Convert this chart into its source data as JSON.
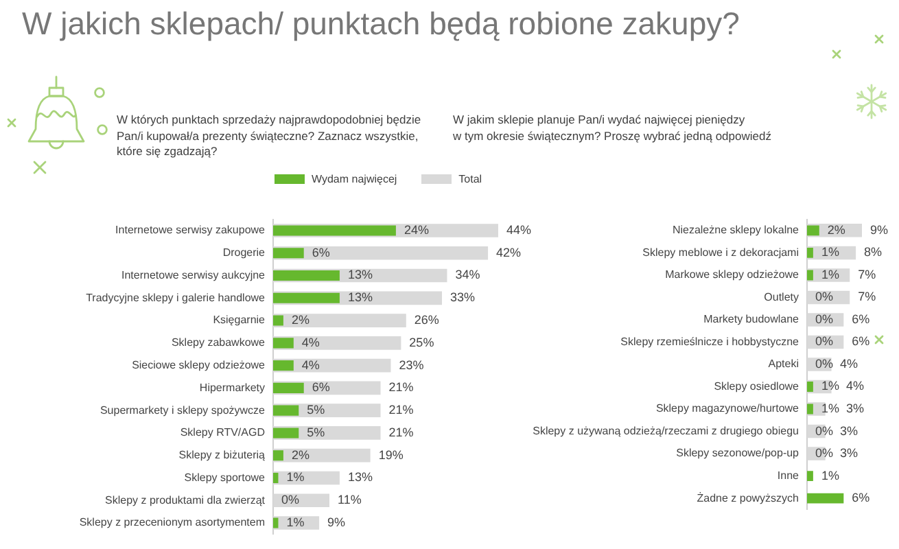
{
  "chart_data": [
    {
      "type": "bar",
      "title": "W jakich sklepach/ punktach będą robione zakupy?",
      "subtitle": "W których punktach sprzedaży najprawdopodobniej będzie\nPan/i kupował/a prezenty świąteczne? Zaznacz wszystkie,\nktóre się zgadzają?",
      "orientation": "horizontal",
      "categories": [
        "Internetowe serwisy zakupowe",
        "Drogerie",
        "Internetowe serwisy aukcyjne",
        "Tradycyjne sklepy i galerie handlowe",
        "Księgarnie",
        "Sklepy zabawkowe",
        "Sieciowe sklepy odzieżowe",
        "Hipermarkety",
        "Supermarkety i sklepy spożywcze",
        "Sklepy RTV/AGD",
        "Sklepy z biżuterią",
        "Sklepy sportowe",
        "Sklepy z produktami dla zwierząt",
        "Sklepy z przecenionym asortymentem"
      ],
      "series": [
        {
          "name": "Wydam najwięcej",
          "color": "#66b82e",
          "values": [
            24,
            6,
            13,
            13,
            2,
            4,
            4,
            6,
            5,
            5,
            2,
            1,
            0,
            1
          ],
          "value_labels": [
            "24%",
            "6%",
            "13%",
            "13%",
            "2%",
            "4%",
            "4%",
            "6%",
            "5%",
            "5%",
            "2%",
            "1%",
            "0%",
            "1%"
          ]
        },
        {
          "name": "Total",
          "color": "#d9d9d9",
          "values": [
            44,
            42,
            34,
            33,
            26,
            25,
            23,
            21,
            21,
            21,
            19,
            13,
            11,
            9
          ],
          "value_labels": [
            "44%",
            "42%",
            "34%",
            "33%",
            "26%",
            "25%",
            "23%",
            "21%",
            "21%",
            "21%",
            "19%",
            "13%",
            "11%",
            "9%"
          ]
        }
      ],
      "legend": "top",
      "tick_labels": "y"
    },
    {
      "type": "bar",
      "subtitle": "W jakim sklepie planuje Pan/i wydać najwięcej pieniędzy\nw tym okresie świątecznym? Proszę wybrać jedną odpowiedź",
      "orientation": "horizontal",
      "categories": [
        "Niezależne sklepy lokalne",
        "Sklepy meblowe i z dekoracjami",
        "Markowe sklepy odzieżowe",
        "Outlety",
        "Markety budowlane",
        "Sklepy rzemieślnicze i hobbystyczne",
        "Apteki",
        "Sklepy osiedlowe",
        "Sklepy magazynowe/hurtowe",
        "Sklepy z używaną odzieżą/rzeczami z drugiego obiegu",
        "Sklepy sezonowe/pop-up",
        "Inne",
        "Żadne z powyższych"
      ],
      "series": [
        {
          "color": "#66b82e",
          "values": [
            2,
            1,
            1,
            0,
            0,
            0,
            0,
            1,
            1,
            0,
            0,
            1,
            6
          ],
          "value_labels": [
            "2%",
            "1%",
            "1%",
            "0%",
            "0%",
            "0%",
            "0%",
            "1%",
            "1%",
            "0%",
            "0%",
            "1%",
            "6%"
          ]
        },
        {
          "color": "#d9d9d9",
          "values": [
            9,
            8,
            7,
            7,
            6,
            6,
            4,
            4,
            3,
            3,
            3,
            null,
            null
          ],
          "value_labels": [
            "9%",
            "8%",
            "7%",
            "7%",
            "6%",
            "6%",
            "4%",
            "4%",
            "3%",
            "3%",
            "3%",
            null,
            null
          ]
        }
      ],
      "tick_labels": "y"
    }
  ]
}
